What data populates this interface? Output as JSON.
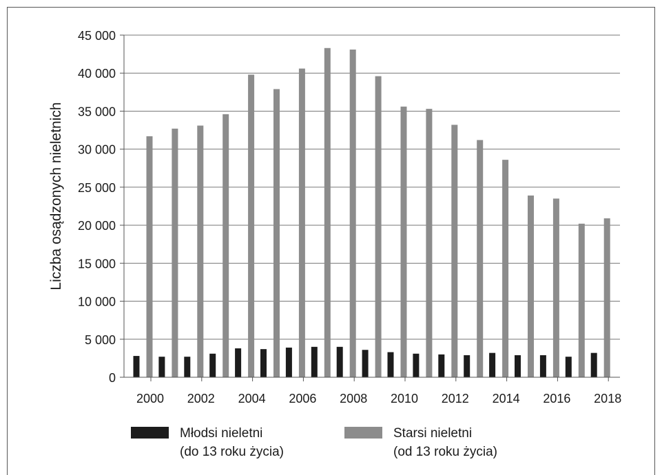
{
  "chart_data": {
    "type": "bar",
    "ylabel": "Liczba osądzonych nieletnich",
    "categories": [
      "2000",
      "2001",
      "2002",
      "2003",
      "2004",
      "2005",
      "2006",
      "2007",
      "2008",
      "2009",
      "2010",
      "2011",
      "2012",
      "2013",
      "2014",
      "2015",
      "2016",
      "2017",
      "2018"
    ],
    "x_tick_labels": [
      "2000",
      "2002",
      "2004",
      "2006",
      "2008",
      "2010",
      "2012",
      "2014",
      "2016",
      "2018"
    ],
    "y_ticks": [
      0,
      5000,
      10000,
      15000,
      20000,
      25000,
      30000,
      35000,
      40000,
      45000
    ],
    "y_tick_labels": [
      "0",
      "5 000",
      "10 000",
      "15 000",
      "20 000",
      "25 000",
      "30 000",
      "35 000",
      "40 000",
      "45 000"
    ],
    "ylim": [
      0,
      45000
    ],
    "grid": "horizontal",
    "legend_position": "bottom",
    "series": [
      {
        "name": "Młodsi nieletni",
        "name_line2": "(do 13 roku życia)",
        "color": "#1c1c1c",
        "values": [
          2800,
          2700,
          2700,
          3100,
          3800,
          3700,
          3900,
          4000,
          4000,
          3600,
          3300,
          3100,
          3000,
          2900,
          3200,
          2900,
          2900,
          2700,
          3200
        ]
      },
      {
        "name": "Starsi nieletni",
        "name_line2": "(od 13 roku życia)",
        "color": "#8c8c8c",
        "values": [
          31700,
          32700,
          33100,
          34600,
          39800,
          37900,
          40600,
          43300,
          43100,
          39600,
          35600,
          35300,
          33200,
          31200,
          28600,
          23900,
          23500,
          20200,
          20900
        ]
      }
    ]
  }
}
